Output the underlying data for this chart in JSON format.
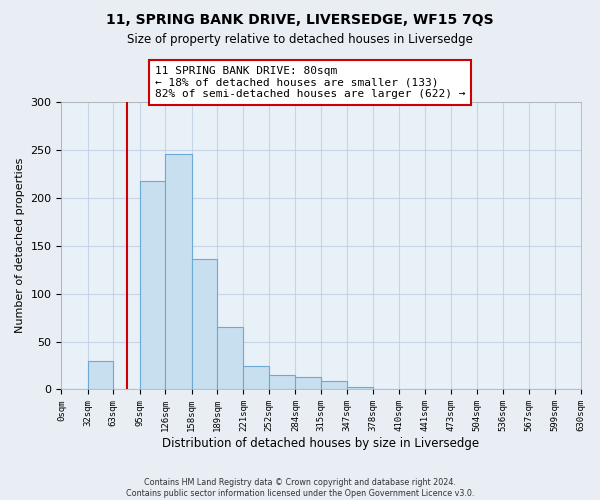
{
  "title": "11, SPRING BANK DRIVE, LIVERSEDGE, WF15 7QS",
  "subtitle": "Size of property relative to detached houses in Liversedge",
  "xlabel": "Distribution of detached houses by size in Liversedge",
  "ylabel": "Number of detached properties",
  "bar_edges": [
    0,
    32,
    63,
    95,
    126,
    158,
    189,
    221,
    252,
    284,
    315,
    347,
    378,
    410,
    441,
    473,
    504,
    536,
    567,
    599,
    630
  ],
  "bar_heights": [
    0,
    30,
    0,
    218,
    246,
    136,
    65,
    24,
    15,
    13,
    9,
    3,
    1,
    0,
    0,
    0,
    0,
    0,
    0,
    1
  ],
  "bar_color": "#c8dff0",
  "bar_edge_color": "#6aaad4",
  "vline_x": 80,
  "vline_color": "#cc0000",
  "annotation_text": "11 SPRING BANK DRIVE: 80sqm\n← 18% of detached houses are smaller (133)\n82% of semi-detached houses are larger (622) →",
  "annotation_box_color": "white",
  "annotation_box_edge_color": "#cc0000",
  "ylim": [
    0,
    300
  ],
  "yticks": [
    0,
    50,
    100,
    150,
    200,
    250,
    300
  ],
  "footer_text": "Contains HM Land Registry data © Crown copyright and database right 2024.\nContains public sector information licensed under the Open Government Licence v3.0.",
  "background_color": "#e8eef4",
  "plot_background_color": "#e8f0f8",
  "grid_color": "#c5d5e5"
}
